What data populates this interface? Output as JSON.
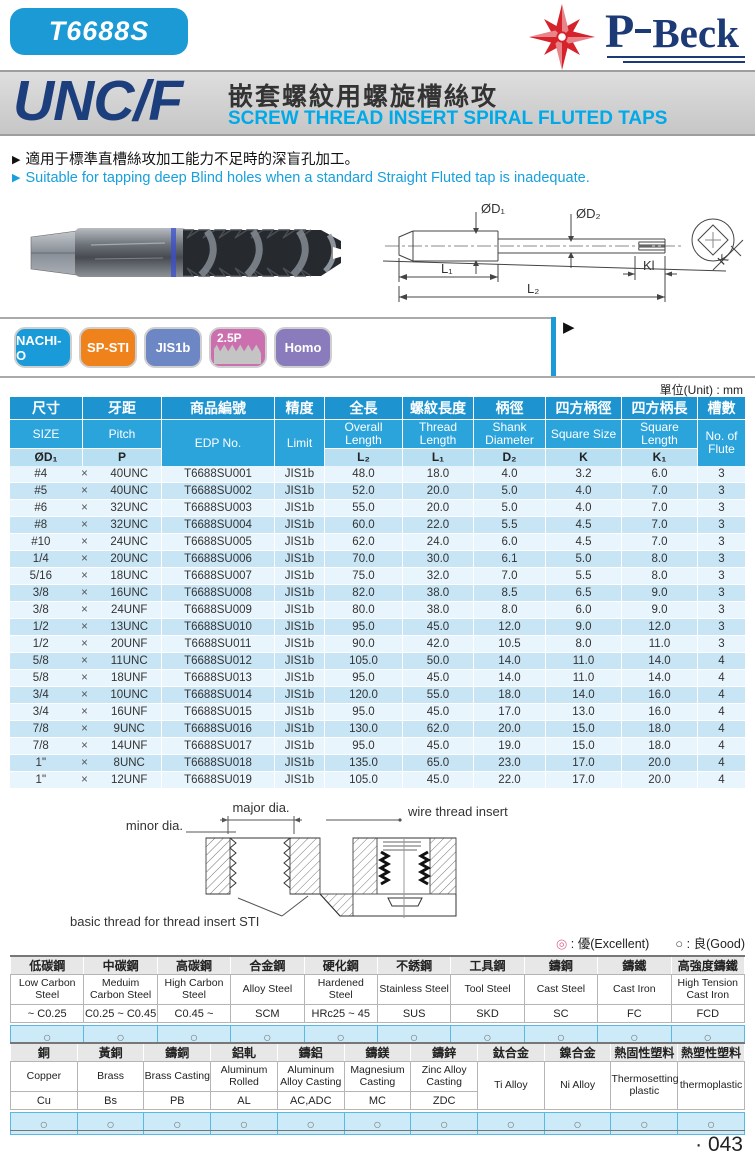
{
  "header": {
    "model": "T6688S",
    "brand_p": "P",
    "brand_rest": "Beck"
  },
  "title": {
    "series": "UNC/F",
    "title_zh": "嵌套螺紋用螺旋槽絲攻",
    "title_en": "SCREW THREAD INSERT SPIRAL FLUTED TAPS"
  },
  "bullets": [
    {
      "marker": "▶",
      "text": "適用于標準直槽絲攻加工能力不足時的深盲孔加工。"
    },
    {
      "marker": "▶",
      "text": "Suitable for tapping deep Blind holes when a standard Straight Fluted tap is inadequate."
    }
  ],
  "drawing_labels": {
    "d1": "ØD₁",
    "d2": "ØD₂",
    "l1": "L₁",
    "l2": "L₂",
    "kl": "Kl",
    "k": "K"
  },
  "badges": [
    {
      "label": "NACHI-O",
      "color": "#189bd8",
      "variant": "plain"
    },
    {
      "label": "SP-STI",
      "color": "#f0821c",
      "variant": "plain"
    },
    {
      "label": "JIS1b",
      "color": "#6d87c4",
      "variant": "plain"
    },
    {
      "label": "2.5P",
      "color": "#cb6fae",
      "variant": "thread"
    },
    {
      "label": "Homo",
      "color": "#8a7cbc",
      "variant": "plain"
    }
  ],
  "unit_label": "單位(Unit) : mm",
  "spec_table": {
    "times_symbol": "×",
    "columns": [
      {
        "zh": "尺寸",
        "en": "SIZE",
        "sym": "ØD₁"
      },
      {
        "zh": "牙距",
        "en": "Pitch",
        "sym": "P"
      },
      {
        "zh": "商品編號",
        "en": "EDP No.",
        "sym": null
      },
      {
        "zh": "精度",
        "en": "Limit",
        "sym": null
      },
      {
        "zh": "全長",
        "en": "Overall Length",
        "sym": "L₂"
      },
      {
        "zh": "螺紋長度",
        "en": "Thread Length",
        "sym": "L₁"
      },
      {
        "zh": "柄徑",
        "en": "Shank Diameter",
        "sym": "D₂"
      },
      {
        "zh": "四方柄徑",
        "en": "Square Size",
        "sym": "K"
      },
      {
        "zh": "四方柄長",
        "en": "Square Length",
        "sym": "K₁"
      },
      {
        "zh": "槽數",
        "en": "No. of Flute",
        "sym": null
      }
    ],
    "rows": [
      [
        "#4",
        "40UNC",
        "T6688SU001",
        "JIS1b",
        "48.0",
        "18.0",
        "4.0",
        "3.2",
        "6.0",
        "3"
      ],
      [
        "#5",
        "40UNC",
        "T6688SU002",
        "JIS1b",
        "52.0",
        "20.0",
        "5.0",
        "4.0",
        "7.0",
        "3"
      ],
      [
        "#6",
        "32UNC",
        "T6688SU003",
        "JIS1b",
        "55.0",
        "20.0",
        "5.0",
        "4.0",
        "7.0",
        "3"
      ],
      [
        "#8",
        "32UNC",
        "T6688SU004",
        "JIS1b",
        "60.0",
        "22.0",
        "5.5",
        "4.5",
        "7.0",
        "3"
      ],
      [
        "#10",
        "24UNC",
        "T6688SU005",
        "JIS1b",
        "62.0",
        "24.0",
        "6.0",
        "4.5",
        "7.0",
        "3"
      ],
      [
        "1/4",
        "20UNC",
        "T6688SU006",
        "JIS1b",
        "70.0",
        "30.0",
        "6.1",
        "5.0",
        "8.0",
        "3"
      ],
      [
        "5/16",
        "18UNC",
        "T6688SU007",
        "JIS1b",
        "75.0",
        "32.0",
        "7.0",
        "5.5",
        "8.0",
        "3"
      ],
      [
        "3/8",
        "16UNC",
        "T6688SU008",
        "JIS1b",
        "82.0",
        "38.0",
        "8.5",
        "6.5",
        "9.0",
        "3"
      ],
      [
        "3/8",
        "24UNF",
        "T6688SU009",
        "JIS1b",
        "80.0",
        "38.0",
        "8.0",
        "6.0",
        "9.0",
        "3"
      ],
      [
        "1/2",
        "13UNC",
        "T6688SU010",
        "JIS1b",
        "95.0",
        "45.0",
        "12.0",
        "9.0",
        "12.0",
        "3"
      ],
      [
        "1/2",
        "20UNF",
        "T6688SU011",
        "JIS1b",
        "90.0",
        "42.0",
        "10.5",
        "8.0",
        "11.0",
        "3"
      ],
      [
        "5/8",
        "11UNC",
        "T6688SU012",
        "JIS1b",
        "105.0",
        "50.0",
        "14.0",
        "11.0",
        "14.0",
        "4"
      ],
      [
        "5/8",
        "18UNF",
        "T6688SU013",
        "JIS1b",
        "95.0",
        "45.0",
        "14.0",
        "11.0",
        "14.0",
        "4"
      ],
      [
        "3/4",
        "10UNC",
        "T6688SU014",
        "JIS1b",
        "120.0",
        "55.0",
        "18.0",
        "14.0",
        "16.0",
        "4"
      ],
      [
        "3/4",
        "16UNF",
        "T6688SU015",
        "JIS1b",
        "95.0",
        "45.0",
        "17.0",
        "13.0",
        "16.0",
        "4"
      ],
      [
        "7/8",
        "9UNC",
        "T6688SU016",
        "JIS1b",
        "130.0",
        "62.0",
        "20.0",
        "15.0",
        "18.0",
        "4"
      ],
      [
        "7/8",
        "14UNF",
        "T6688SU017",
        "JIS1b",
        "95.0",
        "45.0",
        "19.0",
        "15.0",
        "18.0",
        "4"
      ],
      [
        "1\"",
        "8UNC",
        "T6688SU018",
        "JIS1b",
        "135.0",
        "65.0",
        "23.0",
        "17.0",
        "20.0",
        "4"
      ],
      [
        "1\"",
        "12UNF",
        "T6688SU019",
        "JIS1b",
        "105.0",
        "45.0",
        "22.0",
        "17.0",
        "20.0",
        "4"
      ]
    ]
  },
  "insert_diagram": {
    "major": "major dia.",
    "minor": "minor dia.",
    "wire": "wire thread insert",
    "basic": "basic thread for thread insert STI"
  },
  "legend": {
    "excellent_symbol": "◎",
    "excellent_text": ": 優(Excellent)",
    "good_symbol": "○",
    "good_text": ": 良(Good)"
  },
  "material_table_1": {
    "columns": [
      {
        "zh": "低碳鋼",
        "en": "Low Carbon Steel",
        "abbr": "~ C0.25",
        "rating": "○"
      },
      {
        "zh": "中碳鋼",
        "en": "Meduim Carbon Steel",
        "abbr": "C0.25 ~ C0.45",
        "rating": "○"
      },
      {
        "zh": "高碳鋼",
        "en": "High Carbon Steel",
        "abbr": "C0.45 ~",
        "rating": "○"
      },
      {
        "zh": "合金鋼",
        "en": "Alloy Steel",
        "abbr": "SCM",
        "rating": "○"
      },
      {
        "zh": "硬化鋼",
        "en": "Hardened Steel",
        "abbr": "HRc25 ~ 45",
        "rating": "○"
      },
      {
        "zh": "不銹鋼",
        "en": "Stainless Steel",
        "abbr": "SUS",
        "rating": "○"
      },
      {
        "zh": "工具鋼",
        "en": "Tool Steel",
        "abbr": "SKD",
        "rating": "○"
      },
      {
        "zh": "鑄鋼",
        "en": "Cast Steel",
        "abbr": "SC",
        "rating": "○"
      },
      {
        "zh": "鑄鐵",
        "en": "Cast Iron",
        "abbr": "FC",
        "rating": "○"
      },
      {
        "zh": "高強度鑄鐵",
        "en": "High Tension Cast Iron",
        "abbr": "FCD",
        "rating": "○"
      }
    ]
  },
  "material_table_2": {
    "columns": [
      {
        "zh": "銅",
        "en": "Copper",
        "abbr": "Cu",
        "rating": "○"
      },
      {
        "zh": "黃銅",
        "en": "Brass",
        "abbr": "Bs",
        "rating": "○"
      },
      {
        "zh": "鑄銅",
        "en": "Brass Casting",
        "abbr": "PB",
        "rating": "○"
      },
      {
        "zh": "鋁軋",
        "en": "Aluminum Rolled",
        "abbr": "AL",
        "rating": "○"
      },
      {
        "zh": "鑄鋁",
        "en": "Aluminum Alloy Casting",
        "abbr": "AC,ADC",
        "rating": "○"
      },
      {
        "zh": "鑄鎂",
        "en": "Magnesium Casting",
        "abbr": "MC",
        "rating": "○"
      },
      {
        "zh": "鑄鋅",
        "en": "Zinc Alloy Casting",
        "abbr": "ZDC",
        "rating": "○"
      },
      {
        "zh": "鈦合金",
        "en": "Ti Alloy",
        "abbr": null,
        "rating": "○"
      },
      {
        "zh": "鎳合金",
        "en": "Ni Alloy",
        "abbr": null,
        "rating": "○"
      },
      {
        "zh": "熱固性塑料",
        "en": "Thermosetting plastic",
        "abbr": null,
        "rating": "○"
      },
      {
        "zh": "熱塑性塑料",
        "en": "thermoplastic",
        "abbr": null,
        "rating": "○"
      }
    ]
  },
  "footer": {
    "page_number": "· 043"
  }
}
